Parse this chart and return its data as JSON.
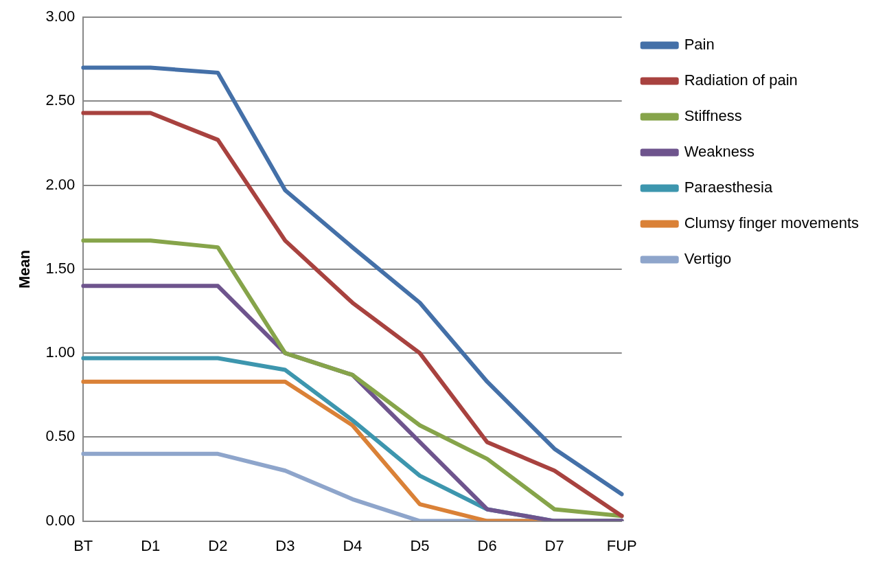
{
  "chart_data": {
    "type": "line",
    "ylabel": "Mean",
    "categories": [
      "BT",
      "D1",
      "D2",
      "D3",
      "D4",
      "D5",
      "D6",
      "D7",
      "FUP"
    ],
    "series": [
      {
        "name": "Pain",
        "color": "#4470a8",
        "values": [
          2.7,
          2.7,
          2.67,
          1.97,
          1.63,
          1.3,
          0.83,
          0.43,
          0.16
        ]
      },
      {
        "name": "Radiation of pain",
        "color": "#a8423f",
        "values": [
          2.43,
          2.43,
          2.27,
          1.67,
          1.3,
          1.0,
          0.47,
          0.3,
          0.03
        ]
      },
      {
        "name": "Stiffness",
        "color": "#86a44a",
        "values": [
          1.67,
          1.67,
          1.63,
          1.0,
          0.87,
          0.57,
          0.37,
          0.07,
          0.03
        ]
      },
      {
        "name": "Weakness",
        "color": "#6e548d",
        "values": [
          1.4,
          1.4,
          1.4,
          1.0,
          0.87,
          0.47,
          0.07,
          0,
          0
        ]
      },
      {
        "name": "Paraesthesia",
        "color": "#3d96ae",
        "values": [
          0.97,
          0.97,
          0.97,
          0.9,
          0.6,
          0.27,
          0.07,
          0,
          0
        ]
      },
      {
        "name": "Clumsy finger movements",
        "color": "#da8137",
        "values": [
          0.83,
          0.83,
          0.83,
          0.83,
          0.57,
          0.1,
          0,
          0,
          0
        ]
      },
      {
        "name": "Vertigo",
        "color": "#8ea5cb",
        "values": [
          0.4,
          0.4,
          0.4,
          0.3,
          0.13,
          0,
          0,
          0,
          0
        ]
      }
    ],
    "ylim": [
      0,
      3
    ],
    "yticks": [
      {
        "value": 0,
        "label": "0.00"
      },
      {
        "value": 0.5,
        "label": "0.50"
      },
      {
        "value": 1,
        "label": "1.00"
      },
      {
        "value": 1.5,
        "label": "1.50"
      },
      {
        "value": 2,
        "label": "2.00"
      },
      {
        "value": 2.5,
        "label": "2.50"
      },
      {
        "value": 3,
        "label": "3.00"
      }
    ],
    "grid": "y",
    "legend": "top right",
    "marker": "none",
    "line_style": "solid"
  }
}
